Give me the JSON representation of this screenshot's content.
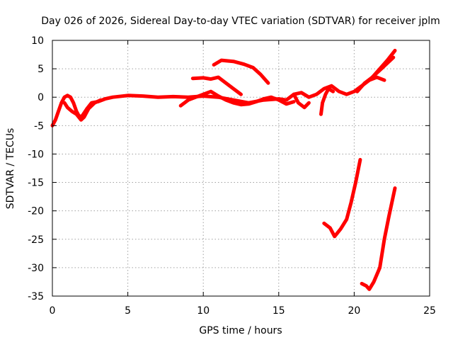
{
  "chart_data": {
    "type": "line",
    "title": "Day 026 of 2026, Sidereal Day-to-day VTEC variation (SDTVAR) for receiver jplm",
    "xlabel": "GPS time / hours",
    "ylabel": "SDTVAR / TECUs",
    "xlim": [
      0,
      25
    ],
    "ylim": [
      -35,
      10
    ],
    "xticks": [
      0,
      5,
      10,
      15,
      20,
      25
    ],
    "yticks": [
      10,
      5,
      0,
      -5,
      -10,
      -15,
      -20,
      -25,
      -30,
      -35
    ],
    "grid": true,
    "color": "#ff0000",
    "series": [
      {
        "name": "trace-1",
        "points": [
          [
            0,
            -5
          ],
          [
            0.2,
            -4
          ],
          [
            0.4,
            -2.5
          ],
          [
            0.6,
            -1
          ],
          [
            0.8,
            0
          ],
          [
            1,
            0.3
          ],
          [
            1.2,
            0
          ],
          [
            1.4,
            -1
          ],
          [
            1.6,
            -2.5
          ],
          [
            1.8,
            -3.5
          ],
          [
            2,
            -3.2
          ],
          [
            2.3,
            -2
          ],
          [
            2.6,
            -1
          ],
          [
            3,
            -0.8
          ],
          [
            3.5,
            -0.3
          ],
          [
            4,
            0
          ],
          [
            5,
            0.3
          ],
          [
            6,
            0.2
          ],
          [
            7,
            0
          ],
          [
            8,
            0.1
          ],
          [
            9,
            0
          ],
          [
            10,
            0.2
          ],
          [
            11,
            0
          ],
          [
            12,
            -0.5
          ],
          [
            13,
            -1
          ],
          [
            14,
            -0.5
          ],
          [
            15,
            -0.3
          ],
          [
            15.5,
            -0.5
          ],
          [
            16,
            0.5
          ],
          [
            16.5,
            0.8
          ],
          [
            17,
            0
          ],
          [
            17.5,
            0.5
          ],
          [
            18,
            1.5
          ],
          [
            18.5,
            2
          ],
          [
            19,
            1
          ],
          [
            19.5,
            0.5
          ],
          [
            20,
            1
          ],
          [
            20.5,
            2
          ],
          [
            21,
            3
          ],
          [
            21.5,
            3.5
          ],
          [
            22,
            3
          ]
        ]
      },
      {
        "name": "trace-2",
        "points": [
          [
            0.8,
            -1
          ],
          [
            1,
            -1.8
          ],
          [
            1.3,
            -2.5
          ],
          [
            1.6,
            -3
          ],
          [
            1.9,
            -4
          ],
          [
            2.1,
            -3.5
          ],
          [
            2.4,
            -2
          ],
          [
            2.8,
            -1
          ],
          [
            3.2,
            -0.5
          ]
        ]
      },
      {
        "name": "trace-3",
        "points": [
          [
            8.5,
            -1.5
          ],
          [
            9,
            -0.5
          ],
          [
            9.5,
            0
          ],
          [
            10,
            0.5
          ],
          [
            10.5,
            1
          ],
          [
            11,
            0.2
          ],
          [
            11.5,
            -0.5
          ],
          [
            12,
            -1
          ],
          [
            12.5,
            -1.3
          ],
          [
            13,
            -1.2
          ],
          [
            13.5,
            -0.8
          ],
          [
            14,
            -0.3
          ],
          [
            14.5,
            0
          ],
          [
            15,
            -0.5
          ],
          [
            15.5,
            -1.2
          ],
          [
            16,
            -0.8
          ]
        ]
      },
      {
        "name": "trace-4",
        "points": [
          [
            9.3,
            3.3
          ],
          [
            10,
            3.4
          ],
          [
            10.5,
            3.2
          ],
          [
            11,
            3.5
          ],
          [
            11.5,
            2.5
          ],
          [
            12,
            1.5
          ],
          [
            12.5,
            0.5
          ]
        ]
      },
      {
        "name": "trace-5",
        "points": [
          [
            10.7,
            5.7
          ],
          [
            11.2,
            6.5
          ],
          [
            12,
            6.3
          ],
          [
            12.7,
            5.8
          ],
          [
            13.3,
            5.2
          ],
          [
            13.8,
            4
          ],
          [
            14.3,
            2.5
          ]
        ]
      },
      {
        "name": "trace-6",
        "points": [
          [
            16,
            0.5
          ],
          [
            16.3,
            -1
          ],
          [
            16.7,
            -1.8
          ],
          [
            17,
            -1
          ]
        ]
      },
      {
        "name": "trace-7",
        "points": [
          [
            17.8,
            -3
          ],
          [
            17.9,
            -1
          ],
          [
            18.1,
            0.5
          ],
          [
            18.3,
            1.5
          ],
          [
            18.6,
            1
          ]
        ]
      },
      {
        "name": "trace-8",
        "points": [
          [
            20.2,
            1
          ],
          [
            20.7,
            2.5
          ],
          [
            21.2,
            3.5
          ],
          [
            21.7,
            5
          ],
          [
            22.2,
            6.5
          ],
          [
            22.7,
            8.2
          ]
        ]
      },
      {
        "name": "trace-9",
        "points": [
          [
            21,
            3
          ],
          [
            21.4,
            4
          ],
          [
            21.8,
            5
          ],
          [
            22.2,
            6
          ],
          [
            22.6,
            7
          ]
        ]
      },
      {
        "name": "trace-10",
        "points": [
          [
            18,
            -22.2
          ],
          [
            18.4,
            -23
          ],
          [
            18.7,
            -24.5
          ],
          [
            19.1,
            -23.2
          ],
          [
            19.5,
            -21.5
          ],
          [
            19.8,
            -18.5
          ],
          [
            20.1,
            -15
          ],
          [
            20.4,
            -11
          ]
        ]
      },
      {
        "name": "trace-11",
        "points": [
          [
            20.5,
            -32.8
          ],
          [
            20.8,
            -33.2
          ],
          [
            21,
            -33.8
          ],
          [
            21.3,
            -32.5
          ],
          [
            21.7,
            -30
          ],
          [
            22,
            -25
          ],
          [
            22.3,
            -21
          ],
          [
            22.7,
            -16
          ]
        ]
      }
    ]
  }
}
